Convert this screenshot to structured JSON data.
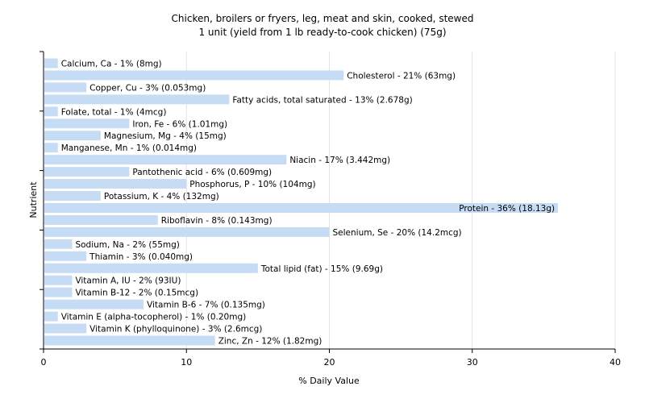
{
  "chart_data": {
    "type": "bar",
    "orientation": "horizontal",
    "title": "Chicken, broilers or fryers, leg, meat and skin, cooked, stewed",
    "subtitle": "1 unit (yield from 1 lb ready-to-cook chicken) (75g)",
    "xlabel": "% Daily Value",
    "ylabel": "Nutrient",
    "xlim": [
      0,
      40
    ],
    "xticks": [
      "0",
      "10",
      "20",
      "30",
      "40"
    ],
    "grid": true,
    "bar_color": "#c6dcf5",
    "grid_color": "#e4e4e4",
    "items": [
      {
        "label": "Calcium, Ca - 1% (8mg)",
        "value": 1
      },
      {
        "label": "Cholesterol - 21% (63mg)",
        "value": 21
      },
      {
        "label": "Copper, Cu - 3% (0.053mg)",
        "value": 3
      },
      {
        "label": "Fatty acids, total saturated - 13% (2.678g)",
        "value": 13
      },
      {
        "label": "Folate, total - 1% (4mcg)",
        "value": 1
      },
      {
        "label": "Iron, Fe - 6% (1.01mg)",
        "value": 6
      },
      {
        "label": "Magnesium, Mg - 4% (15mg)",
        "value": 4
      },
      {
        "label": "Manganese, Mn - 1% (0.014mg)",
        "value": 1
      },
      {
        "label": "Niacin - 17% (3.442mg)",
        "value": 17
      },
      {
        "label": "Pantothenic acid - 6% (0.609mg)",
        "value": 6
      },
      {
        "label": "Phosphorus, P - 10% (104mg)",
        "value": 10
      },
      {
        "label": "Potassium, K - 4% (132mg)",
        "value": 4
      },
      {
        "label": "Protein - 36% (18.13g)",
        "value": 36
      },
      {
        "label": "Riboflavin - 8% (0.143mg)",
        "value": 8
      },
      {
        "label": "Selenium, Se - 20% (14.2mcg)",
        "value": 20
      },
      {
        "label": "Sodium, Na - 2% (55mg)",
        "value": 2
      },
      {
        "label": "Thiamin - 3% (0.040mg)",
        "value": 3
      },
      {
        "label": "Total lipid (fat) - 15% (9.69g)",
        "value": 15
      },
      {
        "label": "Vitamin A, IU - 2% (93IU)",
        "value": 2
      },
      {
        "label": "Vitamin B-12 - 2% (0.15mcg)",
        "value": 2
      },
      {
        "label": "Vitamin B-6 - 7% (0.135mg)",
        "value": 7
      },
      {
        "label": "Vitamin E (alpha-tocopherol) - 1% (0.20mg)",
        "value": 1
      },
      {
        "label": "Vitamin K (phylloquinone) - 3% (2.6mcg)",
        "value": 3
      },
      {
        "label": "Zinc, Zn - 12% (1.82mg)",
        "value": 12
      }
    ]
  }
}
